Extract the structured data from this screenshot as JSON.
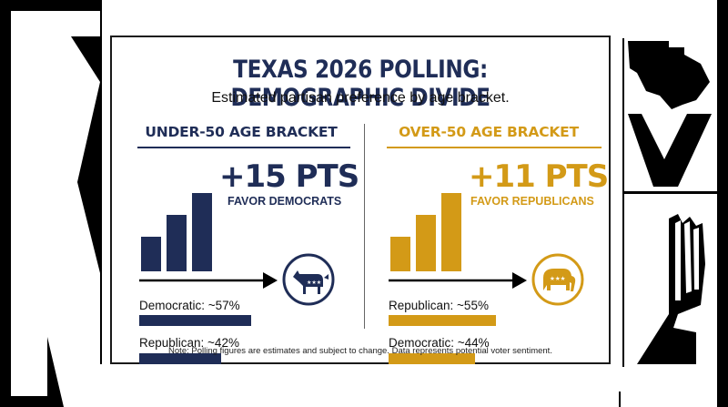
{
  "title": "TEXAS 2026 POLLING: DEMOGRAPHIC DIVIDE",
  "subtitle": "Estimated partisan preference by age bracket.",
  "colors": {
    "navy": "#1f2d57",
    "gold": "#d39a17",
    "black": "#000000"
  },
  "panels": [
    {
      "heading": "UNDER-50 AGE BRACKET",
      "headline": "+15 PTS",
      "favor": "FAVOR DEMOCRATS",
      "icon": "donkey-icon",
      "color": "#1f2d57",
      "metrics": [
        {
          "label": "Democratic: ~57%",
          "value": 57
        },
        {
          "label": "Republican: ~42%",
          "value": 42
        }
      ]
    },
    {
      "heading": "OVER-50 AGE BRACKET",
      "headline": "+11 PTS",
      "favor": "FAVOR REPUBLICANS",
      "icon": "elephant-icon",
      "color": "#d39a17",
      "metrics": [
        {
          "label": "Republican: ~55%",
          "value": 55
        },
        {
          "label": "Democratic: ~44%",
          "value": 44
        }
      ]
    }
  ],
  "note": "Note: Polling figures are estimates and subject to change. Data represents potential voter sentiment.",
  "chart_data": [
    {
      "type": "bar",
      "title": "UNDER-50 AGE BRACKET",
      "categories": [
        "Democratic",
        "Republican"
      ],
      "values": [
        57,
        42
      ],
      "margin_label": "+15 PTS FAVOR DEMOCRATS"
    },
    {
      "type": "bar",
      "title": "OVER-50 AGE BRACKET",
      "categories": [
        "Republican",
        "Democratic"
      ],
      "values": [
        55,
        44
      ],
      "margin_label": "+11 PTS FAVOR REPUBLICANS"
    }
  ]
}
